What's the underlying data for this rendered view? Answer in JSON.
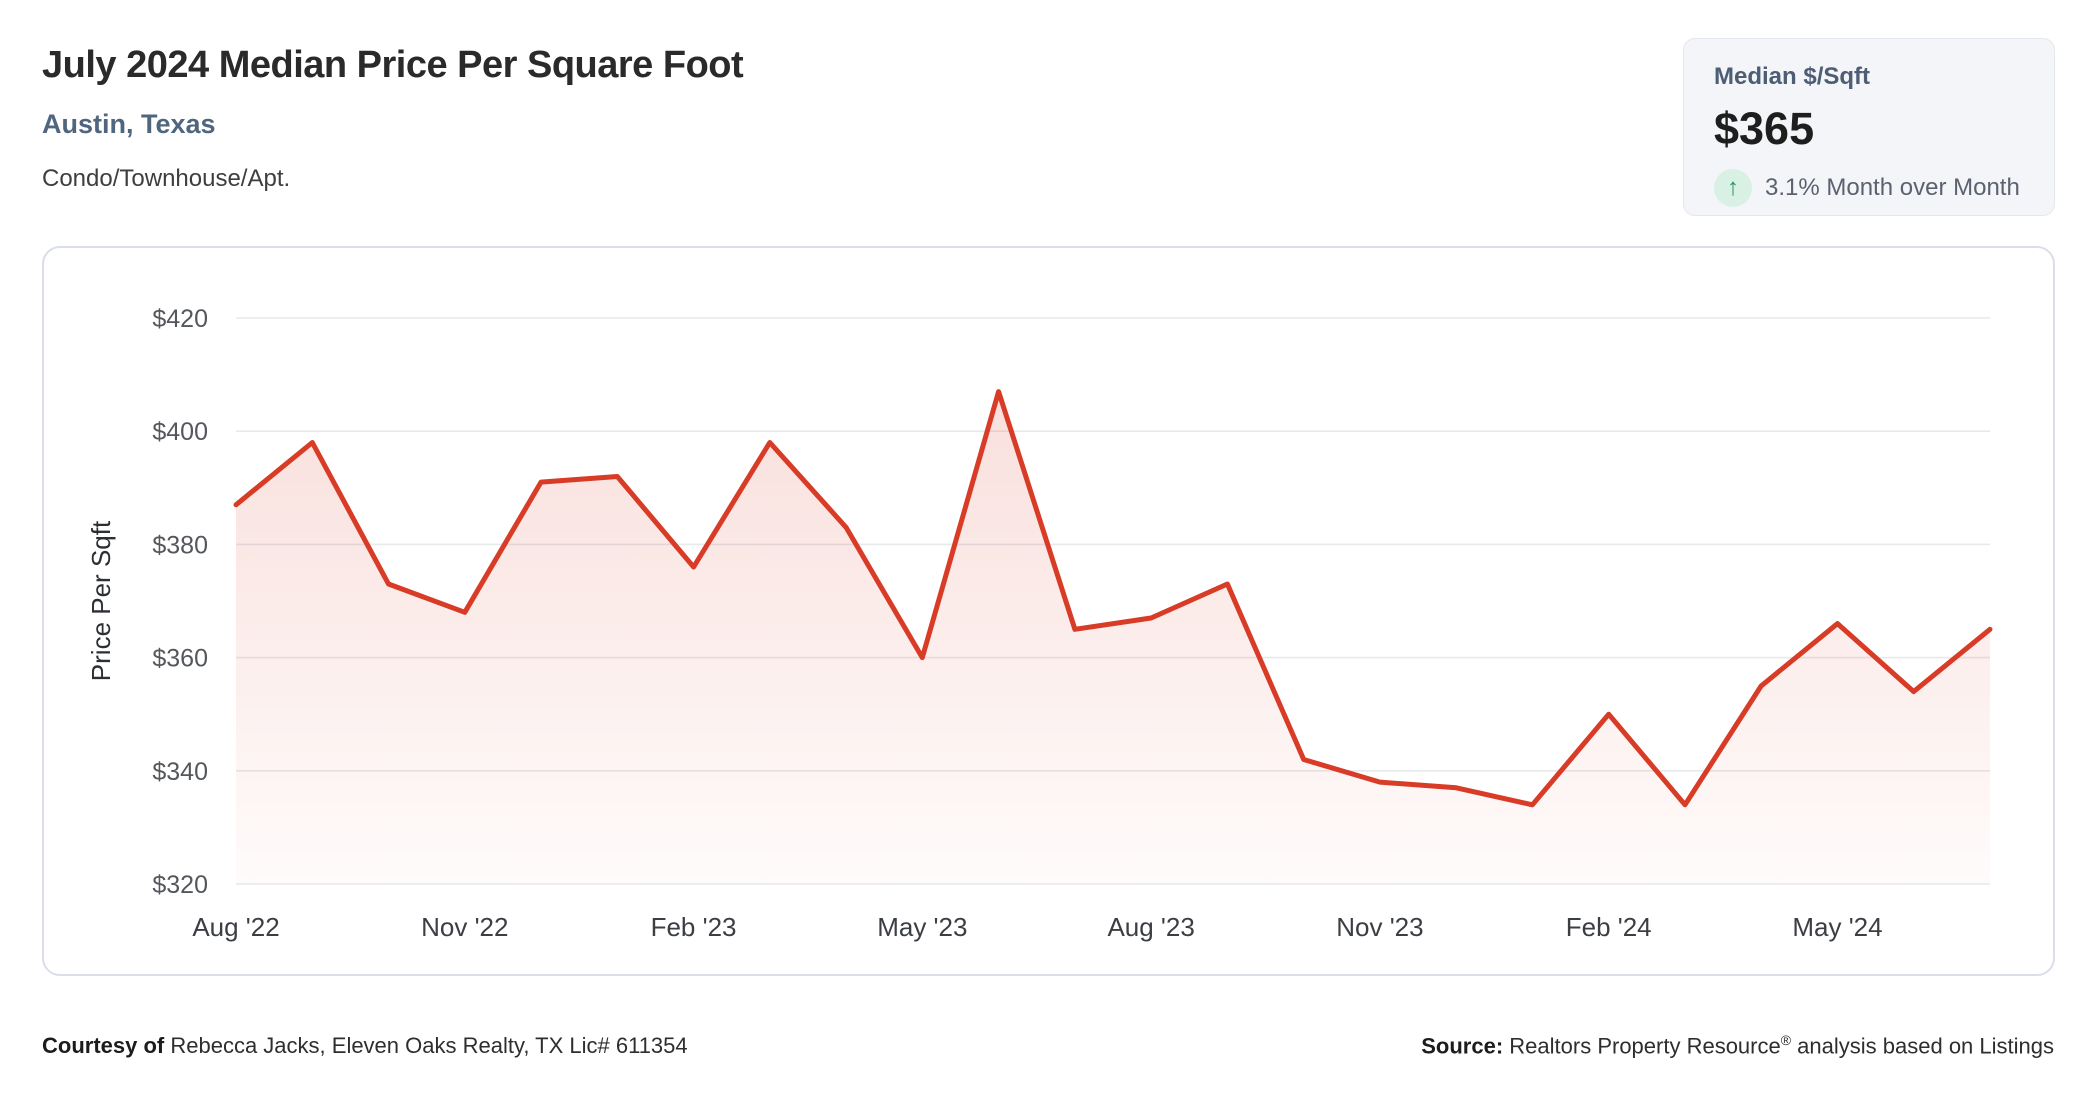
{
  "header": {
    "title": "July 2024 Median Price Per Square Foot",
    "subtitle": "Austin, Texas",
    "property_type": "Condo/Townhouse/Apt."
  },
  "stat_card": {
    "label": "Median $/Sqft",
    "value": "$365",
    "trend_icon": "up-arrow-icon",
    "trend_glyph": "↑",
    "change_text": "3.1% Month over Month",
    "trend_color": "#27995e",
    "trend_bg": "#d8f1e4"
  },
  "chart_data": {
    "type": "area",
    "title": "",
    "xlabel": "",
    "ylabel": "Price Per Sqft",
    "ylim": [
      320,
      420
    ],
    "yticks": [
      320,
      340,
      360,
      380,
      400,
      420
    ],
    "ytick_prefix": "$",
    "grid": true,
    "legend": false,
    "x": [
      "Aug '22",
      "Sep '22",
      "Oct '22",
      "Nov '22",
      "Dec '22",
      "Jan '23",
      "Feb '23",
      "Mar '23",
      "Apr '23",
      "May '23",
      "Jun '23",
      "Jul '23",
      "Aug '23",
      "Sep '23",
      "Oct '23",
      "Nov '23",
      "Dec '23",
      "Jan '24",
      "Feb '24",
      "Mar '24",
      "Apr '24",
      "May '24",
      "Jun '24",
      "Jul '24"
    ],
    "xtick_every": 3,
    "xtick_labels": [
      "Aug '22",
      "Nov '22",
      "Feb '23",
      "May '23",
      "Aug '23",
      "Nov '23",
      "Feb '24",
      "May '24"
    ],
    "series": [
      {
        "name": "Median $/Sqft",
        "values": [
          387,
          398,
          373,
          368,
          391,
          392,
          376,
          398,
          383,
          360,
          407,
          365,
          367,
          373,
          342,
          338,
          337,
          334,
          350,
          334,
          355,
          366,
          354,
          365
        ]
      }
    ],
    "line_color": "#d83b26",
    "fill_top": "rgba(216,59,38,0.16)",
    "fill_bottom": "rgba(216,59,38,0.02)",
    "grid_color": "#e8e9eb"
  },
  "footer": {
    "courtesy_label": "Courtesy of",
    "courtesy_text": " Rebecca Jacks, Eleven Oaks Realty, TX Lic# 611354",
    "source_label": "Source:",
    "source_text_before_reg": " Realtors Property Resource",
    "source_reg": "®",
    "source_text_after_reg": " analysis based on Listings"
  }
}
